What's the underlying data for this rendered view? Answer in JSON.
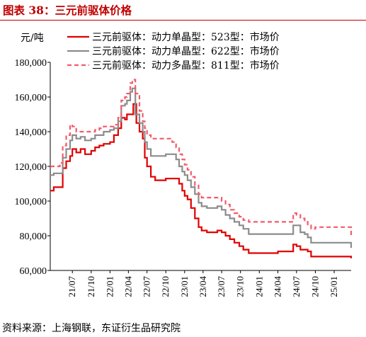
{
  "figure": {
    "title": "图表 38：三元前驱体价格",
    "source": "资料来源：上海钢联，东证衍生品研究院"
  },
  "chart_data": {
    "type": "line",
    "ylabel": "元/吨",
    "xlabel": "",
    "ylim": [
      60000,
      180000
    ],
    "yticks": [
      60000,
      80000,
      100000,
      120000,
      140000,
      160000,
      180000
    ],
    "ytick_labels": [
      "60,000",
      "80,000",
      "100,000",
      "120,000",
      "140,000",
      "160,000",
      "180,000"
    ],
    "x_range": [
      "2021-03-15",
      "2025-03-25"
    ],
    "x_tick_labels": [
      "21/07",
      "21/10",
      "22/01",
      "22/04",
      "22/07",
      "22/10",
      "23/01",
      "23/04",
      "23/07",
      "23/10",
      "24/01",
      "24/04",
      "24/07",
      "24/10",
      "25/01"
    ],
    "x_tick_dates": [
      "2021-07-01",
      "2021-10-01",
      "2022-01-01",
      "2022-04-01",
      "2022-07-01",
      "2022-10-01",
      "2023-01-01",
      "2023-04-01",
      "2023-07-01",
      "2023-10-01",
      "2024-01-01",
      "2024-04-01",
      "2024-07-01",
      "2024-10-01",
      "2025-01-01"
    ],
    "grid": false,
    "legend_position": "top",
    "series": [
      {
        "name": "三元前驱体：动力单晶型：523型：市场价",
        "color": "#e00000",
        "style": "solid",
        "points": [
          [
            "2021-03-15",
            106000
          ],
          [
            "2021-04-01",
            108000
          ],
          [
            "2021-05-01",
            108000
          ],
          [
            "2021-05-15",
            119000
          ],
          [
            "2021-06-01",
            123000
          ],
          [
            "2021-06-20",
            126000
          ],
          [
            "2021-07-01",
            130000
          ],
          [
            "2021-07-20",
            128000
          ],
          [
            "2021-08-10",
            130000
          ],
          [
            "2021-09-01",
            127000
          ],
          [
            "2021-10-01",
            129000
          ],
          [
            "2021-10-20",
            131000
          ],
          [
            "2021-11-10",
            132000
          ],
          [
            "2021-12-01",
            133000
          ],
          [
            "2022-01-01",
            134000
          ],
          [
            "2022-01-20",
            138000
          ],
          [
            "2022-02-10",
            142000
          ],
          [
            "2022-02-25",
            148000
          ],
          [
            "2022-03-15",
            147000
          ],
          [
            "2022-03-25",
            150000
          ],
          [
            "2022-04-10",
            150000
          ],
          [
            "2022-04-25",
            156000
          ],
          [
            "2022-05-10",
            145000
          ],
          [
            "2022-05-25",
            140000
          ],
          [
            "2022-06-10",
            136000
          ],
          [
            "2022-06-20",
            125000
          ],
          [
            "2022-07-01",
            120000
          ],
          [
            "2022-07-20",
            114000
          ],
          [
            "2022-08-10",
            112000
          ],
          [
            "2022-09-01",
            112000
          ],
          [
            "2022-10-01",
            113000
          ],
          [
            "2022-11-01",
            113000
          ],
          [
            "2022-11-20",
            113000
          ],
          [
            "2022-12-05",
            110000
          ],
          [
            "2022-12-20",
            106000
          ],
          [
            "2023-01-01",
            103000
          ],
          [
            "2023-01-15",
            101000
          ],
          [
            "2023-02-01",
            96000
          ],
          [
            "2023-02-20",
            90000
          ],
          [
            "2023-03-10",
            85000
          ],
          [
            "2023-03-25",
            83000
          ],
          [
            "2023-04-20",
            82000
          ],
          [
            "2023-05-20",
            82000
          ],
          [
            "2023-06-10",
            83000
          ],
          [
            "2023-07-01",
            82000
          ],
          [
            "2023-07-20",
            80000
          ],
          [
            "2023-08-10",
            78000
          ],
          [
            "2023-09-01",
            76000
          ],
          [
            "2023-09-25",
            74000
          ],
          [
            "2023-10-15",
            72000
          ],
          [
            "2023-11-10",
            70000
          ],
          [
            "2023-12-01",
            70000
          ],
          [
            "2024-01-01",
            70000
          ],
          [
            "2024-02-01",
            70000
          ],
          [
            "2024-03-01",
            70000
          ],
          [
            "2024-04-01",
            71000
          ],
          [
            "2024-05-01",
            71000
          ],
          [
            "2024-06-01",
            71000
          ],
          [
            "2024-06-15",
            75000
          ],
          [
            "2024-07-01",
            74000
          ],
          [
            "2024-07-20",
            72000
          ],
          [
            "2024-08-10",
            72000
          ],
          [
            "2024-08-25",
            71000
          ],
          [
            "2024-09-10",
            68000
          ],
          [
            "2024-10-01",
            68000
          ],
          [
            "2024-11-01",
            68000
          ],
          [
            "2024-12-01",
            68000
          ],
          [
            "2025-01-01",
            68000
          ],
          [
            "2025-02-01",
            68000
          ],
          [
            "2025-03-01",
            68000
          ],
          [
            "2025-03-25",
            67000
          ]
        ]
      },
      {
        "name": "三元前驱体：动力单晶型：622型：市场价",
        "color": "#8c8c8c",
        "style": "solid",
        "points": [
          [
            "2021-03-15",
            115000
          ],
          [
            "2021-04-01",
            116000
          ],
          [
            "2021-05-01",
            116000
          ],
          [
            "2021-05-15",
            125000
          ],
          [
            "2021-06-01",
            130000
          ],
          [
            "2021-06-20",
            135000
          ],
          [
            "2021-07-01",
            138000
          ],
          [
            "2021-07-20",
            136000
          ],
          [
            "2021-08-10",
            137000
          ],
          [
            "2021-09-01",
            135000
          ],
          [
            "2021-10-01",
            136000
          ],
          [
            "2021-10-20",
            138000
          ],
          [
            "2021-11-10",
            138000
          ],
          [
            "2021-12-01",
            140000
          ],
          [
            "2022-01-01",
            141000
          ],
          [
            "2022-01-20",
            142000
          ],
          [
            "2022-02-10",
            146000
          ],
          [
            "2022-02-25",
            155000
          ],
          [
            "2022-03-15",
            156000
          ],
          [
            "2022-03-25",
            158000
          ],
          [
            "2022-04-10",
            163000
          ],
          [
            "2022-04-20",
            165000
          ],
          [
            "2022-05-05",
            150000
          ],
          [
            "2022-05-25",
            145000
          ],
          [
            "2022-06-10",
            140000
          ],
          [
            "2022-06-20",
            134000
          ],
          [
            "2022-07-01",
            130000
          ],
          [
            "2022-07-20",
            126000
          ],
          [
            "2022-08-10",
            126000
          ],
          [
            "2022-09-01",
            126000
          ],
          [
            "2022-10-01",
            127000
          ],
          [
            "2022-11-01",
            127000
          ],
          [
            "2022-11-20",
            124000
          ],
          [
            "2022-12-05",
            120000
          ],
          [
            "2022-12-20",
            117000
          ],
          [
            "2023-01-01",
            115000
          ],
          [
            "2023-01-15",
            112000
          ],
          [
            "2023-02-01",
            108000
          ],
          [
            "2023-02-20",
            104000
          ],
          [
            "2023-03-10",
            99000
          ],
          [
            "2023-03-25",
            97000
          ],
          [
            "2023-04-20",
            96000
          ],
          [
            "2023-05-20",
            96000
          ],
          [
            "2023-06-10",
            97000
          ],
          [
            "2023-07-01",
            95000
          ],
          [
            "2023-07-20",
            92000
          ],
          [
            "2023-08-10",
            90000
          ],
          [
            "2023-09-01",
            88000
          ],
          [
            "2023-09-25",
            86000
          ],
          [
            "2023-10-15",
            84000
          ],
          [
            "2023-11-10",
            81000
          ],
          [
            "2023-12-01",
            81000
          ],
          [
            "2024-01-01",
            81000
          ],
          [
            "2024-02-01",
            81000
          ],
          [
            "2024-03-01",
            81000
          ],
          [
            "2024-04-01",
            81000
          ],
          [
            "2024-05-01",
            81000
          ],
          [
            "2024-06-01",
            81000
          ],
          [
            "2024-06-15",
            86000
          ],
          [
            "2024-07-01",
            86000
          ],
          [
            "2024-07-20",
            82000
          ],
          [
            "2024-08-10",
            81000
          ],
          [
            "2024-08-25",
            79000
          ],
          [
            "2024-09-10",
            76000
          ],
          [
            "2024-10-01",
            76000
          ],
          [
            "2024-11-01",
            76000
          ],
          [
            "2024-12-01",
            76000
          ],
          [
            "2025-01-01",
            76000
          ],
          [
            "2025-02-01",
            76000
          ],
          [
            "2025-03-01",
            76000
          ],
          [
            "2025-03-25",
            73000
          ]
        ]
      },
      {
        "name": "三元前驱体：动力多晶型：811型：市场价",
        "color": "#f25c6a",
        "style": "dashed",
        "points": [
          [
            "2021-03-15",
            120000
          ],
          [
            "2021-04-01",
            120000
          ],
          [
            "2021-05-01",
            122000
          ],
          [
            "2021-05-15",
            132000
          ],
          [
            "2021-06-01",
            138000
          ],
          [
            "2021-06-20",
            144000
          ],
          [
            "2021-07-01",
            143000
          ],
          [
            "2021-07-20",
            140000
          ],
          [
            "2021-08-10",
            140000
          ],
          [
            "2021-09-01",
            140000
          ],
          [
            "2021-10-01",
            140000
          ],
          [
            "2021-10-20",
            141000
          ],
          [
            "2021-11-10",
            142000
          ],
          [
            "2021-12-01",
            143000
          ],
          [
            "2022-01-01",
            143000
          ],
          [
            "2022-01-20",
            144000
          ],
          [
            "2022-02-10",
            148000
          ],
          [
            "2022-02-25",
            158000
          ],
          [
            "2022-03-15",
            160000
          ],
          [
            "2022-03-25",
            162000
          ],
          [
            "2022-04-10",
            168000
          ],
          [
            "2022-04-20",
            170000
          ],
          [
            "2022-05-05",
            162000
          ],
          [
            "2022-05-25",
            152000
          ],
          [
            "2022-06-10",
            146000
          ],
          [
            "2022-06-20",
            142000
          ],
          [
            "2022-07-01",
            138000
          ],
          [
            "2022-07-20",
            136000
          ],
          [
            "2022-08-10",
            136000
          ],
          [
            "2022-09-01",
            136000
          ],
          [
            "2022-10-01",
            136000
          ],
          [
            "2022-11-01",
            134000
          ],
          [
            "2022-11-20",
            131000
          ],
          [
            "2022-12-05",
            127000
          ],
          [
            "2022-12-20",
            124000
          ],
          [
            "2023-01-01",
            121000
          ],
          [
            "2023-01-15",
            118000
          ],
          [
            "2023-02-01",
            114000
          ],
          [
            "2023-02-20",
            109000
          ],
          [
            "2023-03-10",
            104000
          ],
          [
            "2023-03-25",
            102000
          ],
          [
            "2023-04-20",
            102000
          ],
          [
            "2023-05-20",
            102000
          ],
          [
            "2023-06-10",
            102000
          ],
          [
            "2023-07-01",
            100000
          ],
          [
            "2023-07-20",
            98000
          ],
          [
            "2023-08-10",
            95000
          ],
          [
            "2023-09-01",
            93000
          ],
          [
            "2023-09-25",
            91000
          ],
          [
            "2023-10-15",
            89000
          ],
          [
            "2023-11-10",
            88000
          ],
          [
            "2023-12-01",
            88000
          ],
          [
            "2024-01-01",
            88000
          ],
          [
            "2024-02-01",
            88000
          ],
          [
            "2024-03-01",
            88000
          ],
          [
            "2024-04-01",
            88000
          ],
          [
            "2024-05-01",
            88000
          ],
          [
            "2024-06-01",
            88000
          ],
          [
            "2024-06-15",
            93000
          ],
          [
            "2024-07-01",
            92000
          ],
          [
            "2024-07-20",
            90000
          ],
          [
            "2024-08-10",
            88000
          ],
          [
            "2024-08-25",
            86000
          ],
          [
            "2024-09-10",
            84000
          ],
          [
            "2024-10-01",
            85000
          ],
          [
            "2024-11-01",
            85000
          ],
          [
            "2024-12-01",
            85000
          ],
          [
            "2025-01-01",
            85000
          ],
          [
            "2025-02-01",
            85000
          ],
          [
            "2025-03-01",
            85000
          ],
          [
            "2025-03-25",
            80000
          ]
        ]
      }
    ]
  }
}
